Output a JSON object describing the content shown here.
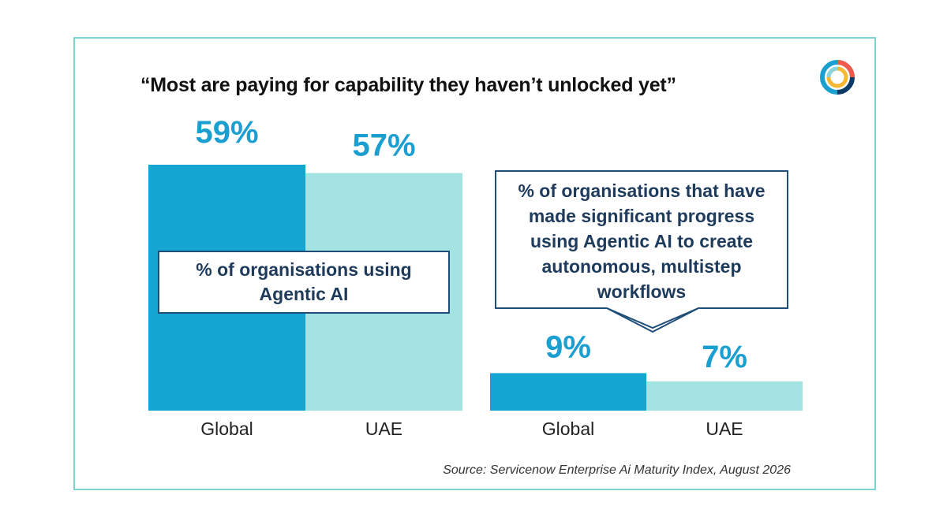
{
  "title": "“Most are paying for capability they haven’t unlocked yet”",
  "colors": {
    "global": "#14a5d2",
    "uae": "#a3e4e2",
    "value_text": "#1a9fd0",
    "frame": "#7fd3d3",
    "box_border": "#1f4e79"
  },
  "logo": {
    "icon": "concentric-ring-logo-icon"
  },
  "chart_data": [
    {
      "type": "bar",
      "categories": [
        "Global",
        "UAE"
      ],
      "values": [
        59,
        57
      ],
      "value_labels": [
        "59%",
        "57%"
      ],
      "title": "% of organisations using Agentic AI",
      "xlabel": "",
      "ylabel": "",
      "grid": false,
      "legend": "none"
    },
    {
      "type": "bar",
      "categories": [
        "Global",
        "UAE"
      ],
      "values": [
        9,
        7
      ],
      "value_labels": [
        "9%",
        "7%"
      ],
      "title": "% of organisations that have made significant progress using Agentic AI to create autonomous, multistep workflows",
      "xlabel": "",
      "ylabel": "",
      "grid": false,
      "legend": "none"
    }
  ],
  "source": "Source: Servicenow Enterprise Ai Maturity Index, August 2026"
}
